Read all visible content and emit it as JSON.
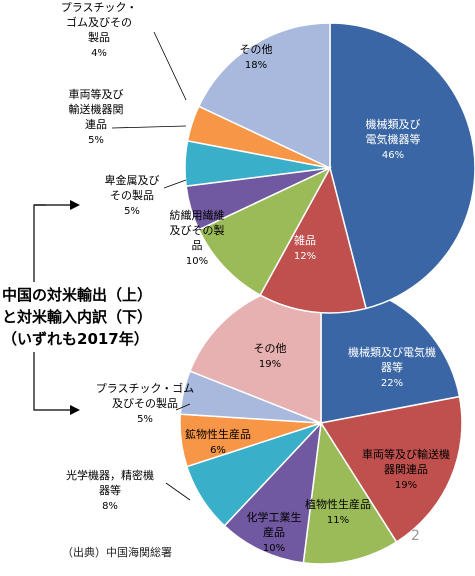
{
  "title_lines": [
    "中国の対米輸出（上）",
    "と対米輸入内訳（下）",
    "（いずれも2017年）"
  ],
  "source": "（出典）中国海関総署",
  "page_number": "2",
  "chart_data": [
    {
      "type": "pie",
      "title": "中国の対米輸出（上）",
      "slices": [
        {
          "label": [
            "機械類及び",
            "電気機器等"
          ],
          "value": 46,
          "pct": "46%",
          "color": "#3A66A5"
        },
        {
          "label": [
            "雑品"
          ],
          "value": 12,
          "pct": "12%",
          "color": "#C0504D"
        },
        {
          "label": [
            "紡織用繊維",
            "及びその製",
            "品"
          ],
          "value": 10,
          "pct": "10%",
          "color": "#9BBB59"
        },
        {
          "label": [
            "卑金属及び",
            "その製品"
          ],
          "value": 5,
          "pct": "5%",
          "color": "#7059A0"
        },
        {
          "label": [
            "車両等及び",
            "輸送機器関",
            "連品"
          ],
          "value": 5,
          "pct": "5%",
          "color": "#3AAFC9"
        },
        {
          "label": [
            "プラスチック・",
            "ゴム及びその",
            "製品"
          ],
          "value": 4,
          "pct": "4%",
          "color": "#F79646"
        },
        {
          "label": [
            "その他"
          ],
          "value": 18,
          "pct": "18%",
          "color": "#A8B9DD"
        }
      ]
    },
    {
      "type": "pie",
      "title": "と対米輸入内訳（下）",
      "slices": [
        {
          "label": [
            "機械類及び電気機",
            "器等"
          ],
          "value": 22,
          "pct": "22%",
          "color": "#3A66A5"
        },
        {
          "label": [
            "車両等及び輸送機",
            "器関連品"
          ],
          "value": 19,
          "pct": "19%",
          "color": "#C0504D"
        },
        {
          "label": [
            "植物性生産品"
          ],
          "value": 11,
          "pct": "11%",
          "color": "#9BBB59"
        },
        {
          "label": [
            "化学工業生",
            "産品"
          ],
          "value": 10,
          "pct": "10%",
          "color": "#7059A0"
        },
        {
          "label": [
            "光学機器，精密機",
            "器等"
          ],
          "value": 8,
          "pct": "8%",
          "color": "#3AAFC9"
        },
        {
          "label": [
            "鉱物性生産品"
          ],
          "value": 6,
          "pct": "6%",
          "color": "#F79646"
        },
        {
          "label": [
            "プラスチック・ゴム",
            "及びその製品"
          ],
          "value": 5,
          "pct": "5%",
          "color": "#A8B9DD"
        },
        {
          "label": [
            "その他"
          ],
          "value": 19,
          "pct": "19%",
          "color": "#E6B1B0"
        }
      ]
    }
  ]
}
